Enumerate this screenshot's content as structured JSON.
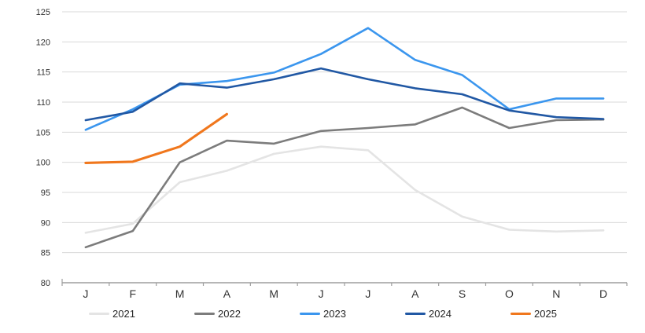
{
  "chart_data": {
    "type": "line",
    "title": "",
    "xlabel": "",
    "ylabel": "",
    "categories": [
      "J",
      "F",
      "M",
      "A",
      "M",
      "J",
      "J",
      "A",
      "S",
      "O",
      "N",
      "D"
    ],
    "series": [
      {
        "name": "2021",
        "color": "#e4e4e4",
        "values": [
          88.3,
          89.8,
          96.7,
          98.6,
          101.4,
          102.6,
          102.0,
          95.4,
          91.0,
          88.8,
          88.5,
          88.7
        ]
      },
      {
        "name": "2022",
        "color": "#7c7c7c",
        "values": [
          85.9,
          88.6,
          100.0,
          103.6,
          103.1,
          105.2,
          105.7,
          106.3,
          109.1,
          105.7,
          107.0,
          107.1
        ]
      },
      {
        "name": "2023",
        "color": "#3b96ee",
        "values": [
          105.4,
          108.8,
          112.9,
          113.5,
          114.9,
          118.0,
          122.3,
          117.0,
          114.5,
          108.8,
          110.6,
          110.6
        ]
      },
      {
        "name": "2024",
        "color": "#2158a4",
        "values": [
          107.0,
          108.4,
          113.1,
          112.4,
          113.8,
          115.6,
          113.8,
          112.3,
          111.3,
          108.6,
          107.5,
          107.2
        ]
      },
      {
        "name": "2025",
        "color": "#f0771d",
        "values": [
          99.9,
          100.1,
          102.6,
          108.0
        ]
      }
    ],
    "ylim": [
      80,
      125
    ],
    "ytick_step": 5,
    "y_tick_labels": [
      "80",
      "85",
      "90",
      "95",
      "100",
      "105",
      "110",
      "115",
      "120",
      "125"
    ],
    "grid": "horizontal-only",
    "legend_position": "bottom"
  },
  "style": {
    "gridline_color": "#d9d9d9",
    "axis_color": "#9e9e9e",
    "text_color": "#333333",
    "line_width": 2.6,
    "line_width_2025": 3.1
  }
}
